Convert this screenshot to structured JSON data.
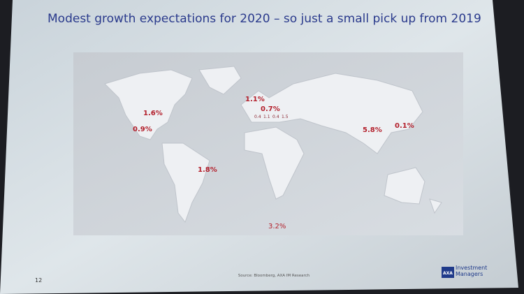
{
  "title": "Modest growth expectations for 2020 – so just a small pick up from 2019",
  "map": {
    "labels": [
      "1.6%",
      "0.9%",
      "1.8%",
      "1.1%",
      "0.7%",
      "0.4",
      "1.1",
      "0.4",
      "1.5",
      "5.8%",
      "0.1%",
      "3.2%"
    ]
  },
  "footer": {
    "page_number": "12",
    "source": "Source: Bloomberg, AXA IM Research",
    "logo_mark": "AXA",
    "logo_text": "Investment Managers"
  }
}
